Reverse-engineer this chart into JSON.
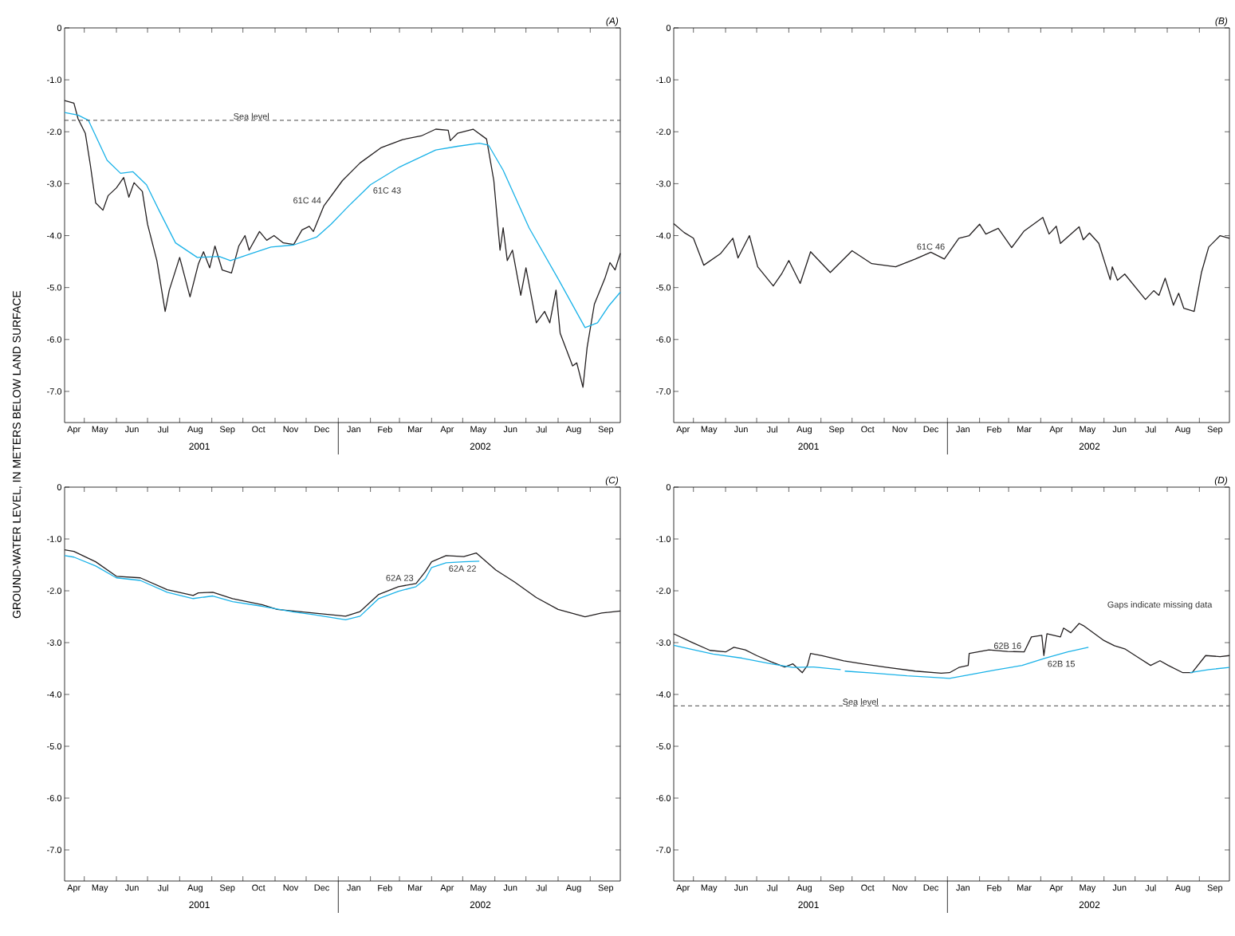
{
  "chart_data": [
    {
      "type": "line",
      "title": "(A)",
      "ylabel": "GROUND-WATER LEVEL, IN METERS BELOW LAND SURFACE",
      "xlim": [
        "2001-04-12",
        "2002-09-30"
      ],
      "ylim": [
        -7.6,
        0
      ],
      "yticks": [
        0,
        {
          "value": -1,
          "label": "-1.0"
        },
        {
          "value": -2,
          "label": "-2.0"
        },
        {
          "value": -3,
          "label": "-3.0"
        },
        {
          "value": -4,
          "label": "-4.0"
        },
        {
          "value": -5,
          "label": "-5.0"
        },
        {
          "value": -6,
          "label": "-6.0"
        },
        {
          "value": -7,
          "label": "-7.0"
        }
      ],
      "xticks": [
        {
          "value": "2001-05-01",
          "label": null
        },
        {
          "value": "2001-06-01",
          "label": null
        },
        {
          "value": "2001-07-01",
          "label": null
        },
        {
          "value": "2001-08-01",
          "label": null
        },
        {
          "value": "2001-09-01",
          "label": null
        },
        {
          "value": "2001-10-01",
          "label": null
        },
        {
          "value": "2001-11-01",
          "label": null
        },
        {
          "value": "2001-12-01",
          "label": null
        },
        {
          "value": "2002-01-01",
          "label": null
        },
        {
          "value": "2002-02-01",
          "label": null
        },
        {
          "value": "2002-03-01",
          "label": null
        },
        {
          "value": "2002-04-01",
          "label": null
        },
        {
          "value": "2002-05-01",
          "label": null
        },
        {
          "value": "2002-06-01",
          "label": null
        },
        {
          "value": "2002-07-01",
          "label": null
        },
        {
          "value": "2002-08-01",
          "label": null
        },
        {
          "value": "2002-09-01",
          "label": null
        },
        {
          "value": "2001-04-21",
          "label": "Apr"
        },
        {
          "value": "2001-05-16",
          "label": "May"
        },
        {
          "value": "2001-06-16",
          "label": "Jun"
        },
        {
          "value": "2001-07-16",
          "label": "Jul"
        },
        {
          "value": "2001-08-16",
          "label": "Aug"
        },
        {
          "value": "2001-09-16",
          "label": "Sep"
        },
        {
          "value": "2001-10-16",
          "label": "Oct"
        },
        {
          "value": "2001-11-16",
          "label": "Nov"
        },
        {
          "value": "2001-12-16",
          "label": "Dec"
        },
        {
          "value": "2002-01-16",
          "label": "Jan"
        },
        {
          "value": "2002-02-15",
          "label": "Feb"
        },
        {
          "value": "2002-03-16",
          "label": "Mar"
        },
        {
          "value": "2002-04-16",
          "label": "Apr"
        },
        {
          "value": "2002-05-16",
          "label": "May"
        },
        {
          "value": "2002-06-16",
          "label": "Jun"
        },
        {
          "value": "2002-07-16",
          "label": "Jul"
        },
        {
          "value": "2002-08-16",
          "label": "Aug"
        },
        {
          "value": "2002-09-16",
          "label": "Sep"
        }
      ],
      "x2lim": [
        "2001-04-12",
        "2002-09-30"
      ],
      "x2ticks": [
        {
          "value": "2001-08-20",
          "label": "2001"
        },
        {
          "value": "2002-01-01",
          "label": null
        },
        {
          "value": "2002-05-18",
          "label": "2002"
        }
      ],
      "ref_lines": [
        {
          "axis": "y",
          "value": -1.78,
          "label": "Sea level",
          "line_style": "dashed",
          "color": "#333333"
        }
      ],
      "series": [
        {
          "name": "61C 44",
          "color": "#231f20",
          "x": [
            "2001-04-12",
            "2001-04-21",
            "2001-04-25",
            "2001-05-02",
            "2001-05-07",
            "2001-05-12",
            "2001-05-19",
            "2001-05-24",
            "2001-06-01",
            "2001-06-08",
            "2001-06-13",
            "2001-06-18",
            "2001-06-26",
            "2001-07-01",
            "2001-07-10",
            "2001-07-18",
            "2001-07-22",
            "2001-08-01",
            "2001-08-11",
            "2001-08-19",
            "2001-08-24",
            "2001-08-30",
            "2001-09-04",
            "2001-09-11",
            "2001-09-20",
            "2001-09-27",
            "2001-10-03",
            "2001-10-07",
            "2001-10-17",
            "2001-10-24",
            "2001-10-31",
            "2001-11-09",
            "2001-11-19",
            "2001-11-27",
            "2001-12-04",
            "2001-12-08",
            "2001-12-18",
            "2002-01-05",
            "2002-01-22",
            "2002-02-11",
            "2002-03-04",
            "2002-03-22",
            "2002-04-05",
            "2002-04-17",
            "2002-04-19",
            "2002-04-26",
            "2002-05-11",
            "2002-05-24",
            "2002-05-31",
            "2002-06-06",
            "2002-06-09",
            "2002-06-13",
            "2002-06-18",
            "2002-06-26",
            "2002-07-01",
            "2002-07-11",
            "2002-07-19",
            "2002-07-24",
            "2002-07-30",
            "2002-08-03",
            "2002-08-15",
            "2002-08-19",
            "2002-08-25",
            "2002-08-29",
            "2002-09-05",
            "2002-09-15",
            "2002-09-20",
            "2002-09-25",
            "2002-09-30"
          ],
          "values": [
            -1.4,
            -1.45,
            -1.75,
            -2.03,
            -2.66,
            -3.37,
            -3.51,
            -3.23,
            -3.08,
            -2.88,
            -3.26,
            -2.98,
            -3.15,
            -3.78,
            -4.48,
            -5.46,
            -5.05,
            -4.42,
            -5.18,
            -4.55,
            -4.31,
            -4.62,
            -4.2,
            -4.66,
            -4.72,
            -4.2,
            -4.0,
            -4.28,
            -3.92,
            -4.09,
            -4.0,
            -4.14,
            -4.17,
            -3.89,
            -3.82,
            -3.92,
            -3.43,
            -2.94,
            -2.6,
            -2.31,
            -2.15,
            -2.08,
            -1.95,
            -1.97,
            -2.17,
            -2.03,
            -1.95,
            -2.14,
            -2.94,
            -4.28,
            -3.85,
            -4.48,
            -4.28,
            -5.15,
            -4.62,
            -5.68,
            -5.46,
            -5.68,
            -5.05,
            -5.88,
            -6.51,
            -6.45,
            -6.92,
            -6.15,
            -5.32,
            -4.83,
            -4.52,
            -4.66,
            -4.34
          ]
        },
        {
          "name": "61C 43",
          "color": "#1ab2e8",
          "x": [
            "2001-04-12",
            "2001-04-25",
            "2001-05-05",
            "2001-05-23",
            "2001-06-05",
            "2001-06-17",
            "2001-06-30",
            "2001-07-12",
            "2001-07-28",
            "2001-08-18",
            "2001-09-08",
            "2001-09-19",
            "2001-10-10",
            "2001-10-28",
            "2001-11-19",
            "2001-12-11",
            "2001-12-25",
            "2002-01-11",
            "2002-02-01",
            "2002-03-01",
            "2002-04-05",
            "2002-04-26",
            "2002-05-17",
            "2002-05-26",
            "2002-06-09",
            "2002-07-04",
            "2002-08-01",
            "2002-08-27",
            "2002-09-08",
            "2002-09-19",
            "2002-09-30"
          ],
          "values": [
            -1.63,
            -1.68,
            -1.78,
            -2.55,
            -2.8,
            -2.77,
            -3.02,
            -3.51,
            -4.14,
            -4.42,
            -4.4,
            -4.48,
            -4.34,
            -4.22,
            -4.18,
            -4.03,
            -3.78,
            -3.43,
            -3.02,
            -2.68,
            -2.35,
            -2.28,
            -2.22,
            -2.26,
            -2.74,
            -3.85,
            -4.83,
            -5.77,
            -5.68,
            -5.35,
            -5.09
          ]
        }
      ]
    },
    {
      "type": "line",
      "title": "(B)",
      "xlim": [
        "2001-04-12",
        "2002-09-30"
      ],
      "ylim": [
        -7.6,
        0
      ],
      "yticks": [
        0,
        {
          "value": -1,
          "label": "-1.0"
        },
        {
          "value": -2,
          "label": "-2.0"
        },
        {
          "value": -3,
          "label": "-3.0"
        },
        {
          "value": -4,
          "label": "-4.0"
        },
        {
          "value": -5,
          "label": "-5.0"
        },
        {
          "value": -6,
          "label": "-6.0"
        },
        {
          "value": -7,
          "label": "-7.0"
        }
      ],
      "xticks": [
        {
          "value": "2001-05-01",
          "label": null
        },
        {
          "value": "2001-06-01",
          "label": null
        },
        {
          "value": "2001-07-01",
          "label": null
        },
        {
          "value": "2001-08-01",
          "label": null
        },
        {
          "value": "2001-09-01",
          "label": null
        },
        {
          "value": "2001-10-01",
          "label": null
        },
        {
          "value": "2001-11-01",
          "label": null
        },
        {
          "value": "2001-12-01",
          "label": null
        },
        {
          "value": "2002-01-01",
          "label": null
        },
        {
          "value": "2002-02-01",
          "label": null
        },
        {
          "value": "2002-03-01",
          "label": null
        },
        {
          "value": "2002-04-01",
          "label": null
        },
        {
          "value": "2002-05-01",
          "label": null
        },
        {
          "value": "2002-06-01",
          "label": null
        },
        {
          "value": "2002-07-01",
          "label": null
        },
        {
          "value": "2002-08-01",
          "label": null
        },
        {
          "value": "2002-09-01",
          "label": null
        },
        {
          "value": "2001-04-21",
          "label": "Apr"
        },
        {
          "value": "2001-05-16",
          "label": "May"
        },
        {
          "value": "2001-06-16",
          "label": "Jun"
        },
        {
          "value": "2001-07-16",
          "label": "Jul"
        },
        {
          "value": "2001-08-16",
          "label": "Aug"
        },
        {
          "value": "2001-09-16",
          "label": "Sep"
        },
        {
          "value": "2001-10-16",
          "label": "Oct"
        },
        {
          "value": "2001-11-16",
          "label": "Nov"
        },
        {
          "value": "2001-12-16",
          "label": "Dec"
        },
        {
          "value": "2002-01-16",
          "label": "Jan"
        },
        {
          "value": "2002-02-15",
          "label": "Feb"
        },
        {
          "value": "2002-03-16",
          "label": "Mar"
        },
        {
          "value": "2002-04-16",
          "label": "Apr"
        },
        {
          "value": "2002-05-16",
          "label": "May"
        },
        {
          "value": "2002-06-16",
          "label": "Jun"
        },
        {
          "value": "2002-07-16",
          "label": "Jul"
        },
        {
          "value": "2002-08-16",
          "label": "Aug"
        },
        {
          "value": "2002-09-16",
          "label": "Sep"
        }
      ],
      "x2lim": [
        "2001-04-12",
        "2002-09-30"
      ],
      "x2ticks": [
        {
          "value": "2001-08-20",
          "label": "2001"
        },
        {
          "value": "2002-01-01",
          "label": null
        },
        {
          "value": "2002-05-18",
          "label": "2002"
        }
      ],
      "series": [
        {
          "name": "61C 46",
          "color": "#231f20",
          "x": [
            "2001-04-12",
            "2001-04-22",
            "2001-05-01",
            "2001-05-11",
            "2001-05-27",
            "2001-06-08",
            "2001-06-13",
            "2001-06-24",
            "2001-07-02",
            "2001-07-17",
            "2001-07-25",
            "2001-08-01",
            "2001-08-12",
            "2001-08-22",
            "2001-09-10",
            "2001-10-01",
            "2001-10-20",
            "2001-11-12",
            "2001-12-01",
            "2001-12-16",
            "2001-12-29",
            "2002-01-12",
            "2002-01-22",
            "2002-02-01",
            "2002-02-07",
            "2002-02-19",
            "2002-03-04",
            "2002-03-16",
            "2002-04-03",
            "2002-04-09",
            "2002-04-16",
            "2002-04-20",
            "2002-05-08",
            "2002-05-12",
            "2002-05-18",
            "2002-05-27",
            "2002-06-07",
            "2002-06-09",
            "2002-06-14",
            "2002-06-21",
            "2002-07-11",
            "2002-07-19",
            "2002-07-24",
            "2002-07-30",
            "2002-08-07",
            "2002-08-12",
            "2002-08-17",
            "2002-08-27",
            "2002-09-03",
            "2002-09-10",
            "2002-09-21",
            "2002-09-30"
          ],
          "values": [
            -3.77,
            -3.94,
            -4.05,
            -4.57,
            -4.35,
            -4.05,
            -4.43,
            -4.0,
            -4.6,
            -4.97,
            -4.74,
            -4.48,
            -4.92,
            -4.31,
            -4.71,
            -4.29,
            -4.54,
            -4.6,
            -4.45,
            -4.32,
            -4.45,
            -4.05,
            -4.0,
            -3.78,
            -3.97,
            -3.86,
            -4.23,
            -3.91,
            -3.65,
            -3.97,
            -3.82,
            -4.15,
            -3.83,
            -4.08,
            -3.95,
            -4.15,
            -4.85,
            -4.6,
            -4.86,
            -4.74,
            -5.23,
            -5.06,
            -5.15,
            -4.82,
            -5.34,
            -5.11,
            -5.4,
            -5.46,
            -4.71,
            -4.22,
            -4.0,
            -4.05
          ]
        }
      ]
    },
    {
      "type": "line",
      "title": "(C)",
      "xlim": [
        "2001-04-12",
        "2002-09-30"
      ],
      "ylim": [
        -7.6,
        0
      ],
      "yticks": [
        0,
        {
          "value": -1,
          "label": "-1.0"
        },
        {
          "value": -2,
          "label": "-2.0"
        },
        {
          "value": -3,
          "label": "-3.0"
        },
        {
          "value": -4,
          "label": "-4.0"
        },
        {
          "value": -5,
          "label": "-5.0"
        },
        {
          "value": -6,
          "label": "-6.0"
        },
        {
          "value": -7,
          "label": "-7.0"
        }
      ],
      "xticks": [
        {
          "value": "2001-05-01",
          "label": null
        },
        {
          "value": "2001-06-01",
          "label": null
        },
        {
          "value": "2001-07-01",
          "label": null
        },
        {
          "value": "2001-08-01",
          "label": null
        },
        {
          "value": "2001-09-01",
          "label": null
        },
        {
          "value": "2001-10-01",
          "label": null
        },
        {
          "value": "2001-11-01",
          "label": null
        },
        {
          "value": "2001-12-01",
          "label": null
        },
        {
          "value": "2002-01-01",
          "label": null
        },
        {
          "value": "2002-02-01",
          "label": null
        },
        {
          "value": "2002-03-01",
          "label": null
        },
        {
          "value": "2002-04-01",
          "label": null
        },
        {
          "value": "2002-05-01",
          "label": null
        },
        {
          "value": "2002-06-01",
          "label": null
        },
        {
          "value": "2002-07-01",
          "label": null
        },
        {
          "value": "2002-08-01",
          "label": null
        },
        {
          "value": "2002-09-01",
          "label": null
        },
        {
          "value": "2001-04-21",
          "label": "Apr"
        },
        {
          "value": "2001-05-16",
          "label": "May"
        },
        {
          "value": "2001-06-16",
          "label": "Jun"
        },
        {
          "value": "2001-07-16",
          "label": "Jul"
        },
        {
          "value": "2001-08-16",
          "label": "Aug"
        },
        {
          "value": "2001-09-16",
          "label": "Sep"
        },
        {
          "value": "2001-10-16",
          "label": "Oct"
        },
        {
          "value": "2001-11-16",
          "label": "Nov"
        },
        {
          "value": "2001-12-16",
          "label": "Dec"
        },
        {
          "value": "2002-01-16",
          "label": "Jan"
        },
        {
          "value": "2002-02-15",
          "label": "Feb"
        },
        {
          "value": "2002-03-16",
          "label": "Mar"
        },
        {
          "value": "2002-04-16",
          "label": "Apr"
        },
        {
          "value": "2002-05-16",
          "label": "May"
        },
        {
          "value": "2002-06-16",
          "label": "Jun"
        },
        {
          "value": "2002-07-16",
          "label": "Jul"
        },
        {
          "value": "2002-08-16",
          "label": "Aug"
        },
        {
          "value": "2002-09-16",
          "label": "Sep"
        }
      ],
      "x2lim": [
        "2001-04-12",
        "2002-09-30"
      ],
      "x2ticks": [
        {
          "value": "2001-08-20",
          "label": "2001"
        },
        {
          "value": "2002-01-01",
          "label": null
        },
        {
          "value": "2002-05-18",
          "label": "2002"
        }
      ],
      "series": [
        {
          "name": "62A 23",
          "color": "#231f20",
          "x": [
            "2001-04-12",
            "2001-04-21",
            "2001-05-12",
            "2001-06-01",
            "2001-06-24",
            "2001-07-20",
            "2001-08-14",
            "2001-08-19",
            "2001-09-02",
            "2001-09-21",
            "2001-10-20",
            "2001-11-03",
            "2001-12-08",
            "2002-01-08",
            "2002-01-22",
            "2002-02-09",
            "2002-02-28",
            "2002-03-17",
            "2002-03-26",
            "2002-04-01",
            "2002-04-15",
            "2002-05-02",
            "2002-05-14",
            "2002-06-02",
            "2002-06-20",
            "2002-07-11",
            "2002-08-01",
            "2002-08-27",
            "2002-09-12",
            "2002-09-30"
          ],
          "values": [
            -1.21,
            -1.24,
            -1.44,
            -1.72,
            -1.75,
            -1.98,
            -2.09,
            -2.04,
            -2.03,
            -2.15,
            -2.27,
            -2.36,
            -2.43,
            -2.49,
            -2.4,
            -2.07,
            -1.92,
            -1.86,
            -1.63,
            -1.44,
            -1.32,
            -1.34,
            -1.27,
            -1.6,
            -1.83,
            -2.13,
            -2.36,
            -2.5,
            -2.43,
            -2.39
          ]
        },
        {
          "name": "62A 22",
          "color": "#1ab2e8",
          "x": [
            "2001-04-12",
            "2001-04-21",
            "2001-05-12",
            "2001-06-01",
            "2001-06-24",
            "2001-07-20",
            "2001-08-14",
            "2001-09-02",
            "2001-09-21",
            "2001-10-20",
            "2001-11-19",
            "2001-12-08",
            "2002-01-08",
            "2002-01-22",
            "2002-02-09",
            "2002-02-28",
            "2002-03-17",
            "2002-03-26",
            "2002-04-01",
            "2002-04-15",
            "2002-05-02",
            "2002-05-17"
          ],
          "values": [
            -1.32,
            -1.35,
            -1.52,
            -1.75,
            -1.8,
            -2.03,
            -2.15,
            -2.1,
            -2.21,
            -2.3,
            -2.41,
            -2.46,
            -2.56,
            -2.49,
            -2.15,
            -2.01,
            -1.92,
            -1.77,
            -1.55,
            -1.46,
            -1.44,
            -1.43
          ]
        }
      ]
    },
    {
      "type": "line",
      "title": "(D)",
      "xlim": [
        "2001-04-12",
        "2002-09-30"
      ],
      "ylim": [
        -7.6,
        0
      ],
      "yticks": [
        0,
        {
          "value": -1,
          "label": "-1.0"
        },
        {
          "value": -2,
          "label": "-2.0"
        },
        {
          "value": -3,
          "label": "-3.0"
        },
        {
          "value": -4,
          "label": "-4.0"
        },
        {
          "value": -5,
          "label": "-5.0"
        },
        {
          "value": -6,
          "label": "-6.0"
        },
        {
          "value": -7,
          "label": "-7.0"
        }
      ],
      "xticks": [
        {
          "value": "2001-05-01",
          "label": null
        },
        {
          "value": "2001-06-01",
          "label": null
        },
        {
          "value": "2001-07-01",
          "label": null
        },
        {
          "value": "2001-08-01",
          "label": null
        },
        {
          "value": "2001-09-01",
          "label": null
        },
        {
          "value": "2001-10-01",
          "label": null
        },
        {
          "value": "2001-11-01",
          "label": null
        },
        {
          "value": "2001-12-01",
          "label": null
        },
        {
          "value": "2002-01-01",
          "label": null
        },
        {
          "value": "2002-02-01",
          "label": null
        },
        {
          "value": "2002-03-01",
          "label": null
        },
        {
          "value": "2002-04-01",
          "label": null
        },
        {
          "value": "2002-05-01",
          "label": null
        },
        {
          "value": "2002-06-01",
          "label": null
        },
        {
          "value": "2002-07-01",
          "label": null
        },
        {
          "value": "2002-08-01",
          "label": null
        },
        {
          "value": "2002-09-01",
          "label": null
        },
        {
          "value": "2001-04-21",
          "label": "Apr"
        },
        {
          "value": "2001-05-16",
          "label": "May"
        },
        {
          "value": "2001-06-16",
          "label": "Jun"
        },
        {
          "value": "2001-07-16",
          "label": "Jul"
        },
        {
          "value": "2001-08-16",
          "label": "Aug"
        },
        {
          "value": "2001-09-16",
          "label": "Sep"
        },
        {
          "value": "2001-10-16",
          "label": "Oct"
        },
        {
          "value": "2001-11-16",
          "label": "Nov"
        },
        {
          "value": "2001-12-16",
          "label": "Dec"
        },
        {
          "value": "2002-01-16",
          "label": "Jan"
        },
        {
          "value": "2002-02-15",
          "label": "Feb"
        },
        {
          "value": "2002-03-16",
          "label": "Mar"
        },
        {
          "value": "2002-04-16",
          "label": "Apr"
        },
        {
          "value": "2002-05-16",
          "label": "May"
        },
        {
          "value": "2002-06-16",
          "label": "Jun"
        },
        {
          "value": "2002-07-16",
          "label": "Jul"
        },
        {
          "value": "2002-08-16",
          "label": "Aug"
        },
        {
          "value": "2002-09-16",
          "label": "Sep"
        }
      ],
      "x2lim": [
        "2001-04-12",
        "2002-09-30"
      ],
      "x2ticks": [
        {
          "value": "2001-08-20",
          "label": "2001"
        },
        {
          "value": "2002-01-01",
          "label": null
        },
        {
          "value": "2002-05-18",
          "label": "2002"
        }
      ],
      "ref_lines": [
        {
          "axis": "y",
          "value": -4.22,
          "label": "Sea level",
          "line_style": "dashed",
          "color": "#333333"
        }
      ],
      "annotations": [
        "Gaps indicate missing data"
      ],
      "series": [
        {
          "name": "62B 16",
          "color": "#231f20",
          "x": [
            "2001-04-12",
            "2001-04-29",
            "2001-05-17",
            "2001-06-01",
            "2001-06-09",
            "2001-06-20",
            "2001-07-01",
            "2001-07-15",
            "2001-07-28",
            "2001-08-05",
            "2001-08-14",
            "2001-08-19",
            "2001-08-22",
            "2001-09-02",
            "2001-09-23",
            "2001-10-11",
            "2001-11-04",
            "2001-12-01",
            "2001-12-26",
            "2002-01-03",
            "2002-01-12",
            "2002-01-21",
            "2002-01-22",
            "2002-02-10",
            "2002-02-28",
            "2002-03-16",
            "2002-03-23",
            "2002-04-02",
            "2002-04-04",
            "2002-04-07",
            "2002-04-20",
            "2002-04-23",
            "2002-04-30",
            "2002-05-08",
            "2002-05-12",
            "2002-06-01",
            "2002-06-11",
            "2002-06-21",
            "2002-07-05",
            "2002-07-16",
            "2002-07-25",
            "2002-08-02",
            "2002-08-16",
            "2002-08-25",
            "2002-09-07",
            "2002-09-21",
            "2002-09-30"
          ],
          "values": [
            -2.83,
            -2.99,
            -3.15,
            -3.18,
            -3.09,
            -3.14,
            -3.25,
            -3.37,
            -3.47,
            -3.41,
            -3.58,
            -3.44,
            -3.21,
            -3.25,
            -3.35,
            -3.41,
            -3.48,
            -3.55,
            -3.59,
            -3.58,
            -3.48,
            -3.44,
            -3.21,
            -3.14,
            -3.17,
            -3.18,
            -2.89,
            -2.86,
            -3.25,
            -2.83,
            -2.89,
            -2.72,
            -2.81,
            -2.63,
            -2.67,
            -2.96,
            -3.06,
            -3.12,
            -3.3,
            -3.44,
            -3.35,
            -3.44,
            -3.58,
            -3.58,
            -3.25,
            -3.27,
            -3.25
          ]
        },
        {
          "name": "62B 15",
          "color": "#1ab2e8",
          "x": [
            "2001-04-12",
            "2001-04-29",
            "2001-05-20",
            "2001-06-17",
            "2001-07-15",
            "2001-08-05",
            "2001-08-25",
            "2001-09-20",
            "2001-09-22",
            "2001-09-24",
            "2001-10-23",
            "2001-11-23",
            "2001-12-19",
            "2002-01-03",
            "2002-01-22",
            "2002-02-16",
            "2002-03-14",
            "2002-04-05",
            "2002-04-27",
            "2002-05-17",
            "2002-06-30",
            "2002-08-23",
            "2002-09-10",
            "2002-09-30"
          ],
          "values": [
            -3.05,
            -3.13,
            -3.22,
            -3.3,
            -3.41,
            -3.48,
            -3.47,
            -3.52,
            null,
            -3.55,
            -3.59,
            -3.64,
            -3.67,
            -3.69,
            -3.62,
            -3.53,
            -3.44,
            -3.3,
            -3.18,
            -3.09,
            null,
            -3.58,
            -3.52,
            -3.48
          ]
        }
      ]
    }
  ]
}
